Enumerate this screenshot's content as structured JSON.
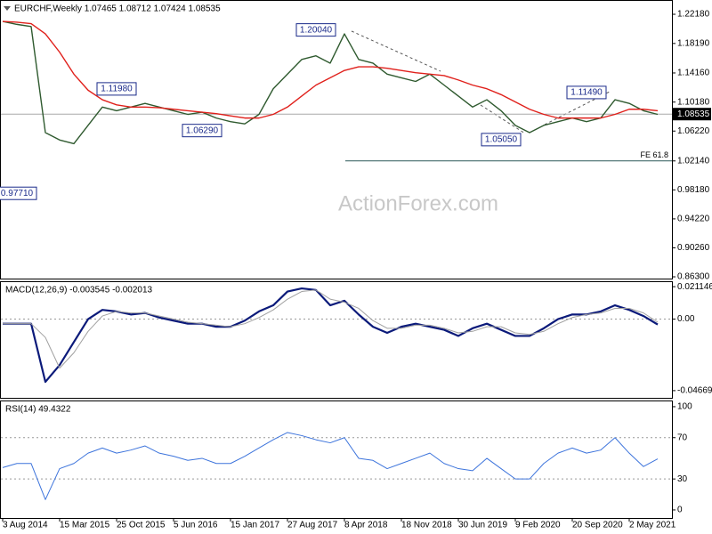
{
  "chart_data": [
    {
      "type": "line",
      "title": "EURCHF,Weekly  1.07465 1.08712 1.07424 1.08535",
      "watermark": "ActionForex.com",
      "ylim": [
        0.8606,
        1.2413
      ],
      "yticks": [
        {
          "value": 1.2218,
          "label": "1.22180"
        },
        {
          "value": 1.1819,
          "label": "1.18190"
        },
        {
          "value": 1.1416,
          "label": "1.14160"
        },
        {
          "value": 1.1018,
          "label": "1.10180"
        },
        {
          "value": 1.0622,
          "label": "1.06220"
        },
        {
          "value": 1.0214,
          "label": "1.02140"
        },
        {
          "value": 0.9818,
          "label": "0.98180"
        },
        {
          "value": 0.9422,
          "label": "0.94220"
        },
        {
          "value": 0.9026,
          "label": "0.90260"
        },
        {
          "value": 0.863,
          "label": "0.86300"
        }
      ],
      "series": [
        {
          "color": "#2f5a2f",
          "values": [
            1.212,
            1.208,
            1.205,
            1.06,
            1.05,
            1.045,
            1.07,
            1.095,
            1.09,
            1.095,
            1.1,
            1.095,
            1.09,
            1.085,
            1.088,
            1.08,
            1.075,
            1.072,
            1.085,
            1.12,
            1.14,
            1.16,
            1.165,
            1.155,
            1.195,
            1.16,
            1.155,
            1.14,
            1.135,
            1.13,
            1.14,
            1.125,
            1.11,
            1.095,
            1.105,
            1.09,
            1.07,
            1.06,
            1.07,
            1.075,
            1.08,
            1.075,
            1.08,
            1.105,
            1.1,
            1.09,
            1.085
          ]
        },
        {
          "color": "#e0201b",
          "values": [
            1.212,
            1.211,
            1.209,
            1.195,
            1.17,
            1.14,
            1.118,
            1.105,
            1.098,
            1.095,
            1.095,
            1.094,
            1.092,
            1.09,
            1.088,
            1.086,
            1.083,
            1.08,
            1.08,
            1.085,
            1.095,
            1.11,
            1.125,
            1.135,
            1.145,
            1.15,
            1.15,
            1.148,
            1.145,
            1.142,
            1.14,
            1.138,
            1.132,
            1.125,
            1.12,
            1.112,
            1.102,
            1.092,
            1.085,
            1.08,
            1.08,
            1.08,
            1.08,
            1.085,
            1.092,
            1.092,
            1.09
          ]
        }
      ],
      "annotations": [
        {
          "label": "0.97710",
          "value": 0.9771,
          "index": 1
        },
        {
          "label": "1.11980",
          "value": 1.1198,
          "index": 8
        },
        {
          "label": "1.06290",
          "value": 1.0629,
          "index": 14
        },
        {
          "label": "1.20040",
          "value": 1.2004,
          "index": 22
        },
        {
          "label": "1.05050",
          "value": 1.0505,
          "index": 35
        },
        {
          "label": "1.11490",
          "value": 1.1149,
          "index": 41
        }
      ],
      "fe_line": {
        "value": 1.0214,
        "label": "FE 61.8"
      },
      "last_price": {
        "value": 1.08535,
        "label": "1.08535"
      }
    },
    {
      "type": "line",
      "title": "MACD(12,26,9) -0.003545 -0.002013",
      "ylim": [
        -0.0514,
        0.0247
      ],
      "yticks": [
        0.021146,
        {
          "value": 0,
          "label": "0.00"
        },
        -0.046699
      ],
      "levels": [
        0
      ],
      "series": [
        {
          "color": "#0b1a7a",
          "width": 2.2,
          "values": [
            -0.003,
            -0.003,
            -0.003,
            -0.041,
            -0.03,
            -0.015,
            0,
            0.006,
            0.005,
            0.003,
            0.004,
            0.001,
            -0.001,
            -0.003,
            -0.003,
            -0.005,
            -0.005,
            -0.001,
            0.005,
            0.009,
            0.018,
            0.02,
            0.019,
            0.009,
            0.012,
            0.003,
            -0.005,
            -0.009,
            -0.005,
            -0.003,
            -0.005,
            -0.007,
            -0.011,
            -0.006,
            -0.003,
            -0.007,
            -0.011,
            -0.011,
            -0.006,
            0,
            0.003,
            0.003,
            0.005,
            0.009,
            0.006,
            0.002,
            -0.003545
          ]
        },
        {
          "color": "#a0a0a0",
          "width": 1,
          "values": [
            -0.003,
            -0.003,
            -0.003,
            -0.012,
            -0.032,
            -0.022,
            -0.008,
            0.002,
            0.005,
            0.004,
            0.004,
            0.002,
            0,
            -0.002,
            -0.003,
            -0.004,
            -0.005,
            -0.003,
            0.001,
            0.006,
            0.013,
            0.018,
            0.019,
            0.013,
            0.011,
            0.007,
            -0.001,
            -0.006,
            -0.006,
            -0.004,
            -0.004,
            -0.006,
            -0.009,
            -0.008,
            -0.005,
            -0.005,
            -0.009,
            -0.01,
            -0.008,
            -0.003,
            0.001,
            0.003,
            0.004,
            0.007,
            0.007,
            0.004,
            -0.002013
          ]
        }
      ]
    },
    {
      "type": "line",
      "title": "RSI(14) 49.4322",
      "ylim": [
        -7.8,
        106
      ],
      "yticks": [
        100,
        70,
        30,
        0
      ],
      "levels": [
        70,
        30
      ],
      "categories": [
        "3 Aug 2014",
        null,
        null,
        null,
        "15 Mar 2015",
        null,
        null,
        null,
        "25 Oct 2015",
        null,
        null,
        null,
        "5 Jun 2016",
        null,
        null,
        null,
        "15 Jan 2017",
        null,
        null,
        null,
        "27 Aug 2017",
        null,
        null,
        null,
        "8 Apr 2018",
        null,
        null,
        null,
        "18 Nov 2018",
        null,
        null,
        null,
        "30 Jun 2019",
        null,
        null,
        null,
        "9 Feb 2020",
        null,
        null,
        null,
        "20 Sep 2020",
        null,
        null,
        null,
        "2 May 2021",
        null,
        null
      ],
      "series": [
        {
          "color": "#3d74dc",
          "width": 1,
          "values": [
            41,
            45,
            45,
            10,
            40,
            45,
            55,
            60,
            55,
            58,
            62,
            55,
            52,
            48,
            50,
            45,
            45,
            52,
            60,
            68,
            75,
            72,
            68,
            65,
            70,
            50,
            48,
            40,
            45,
            50,
            55,
            45,
            40,
            38,
            50,
            40,
            30,
            30,
            45,
            55,
            60,
            55,
            58,
            70,
            55,
            42,
            49.4322
          ]
        }
      ]
    }
  ]
}
